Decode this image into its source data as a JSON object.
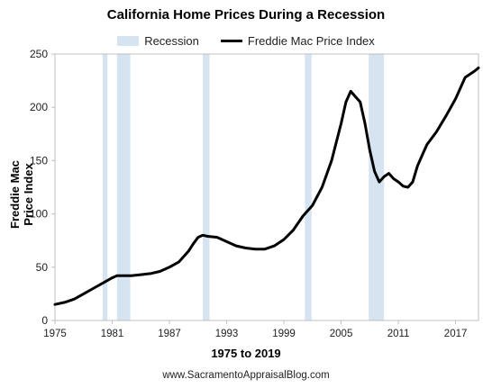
{
  "chart_data": {
    "type": "line",
    "title": "California Home Prices During a Recession",
    "xlabel": "1975 to 2019",
    "ylabel": "Freddie Mac Price Index",
    "xlim": [
      1975,
      2019.4
    ],
    "ylim": [
      0,
      250
    ],
    "xticks": [
      1975,
      1981,
      1987,
      1993,
      1999,
      2005,
      2011,
      2017
    ],
    "yticks": [
      0,
      50,
      100,
      150,
      200,
      250
    ],
    "grid": false,
    "legend_position": "top-center",
    "legend": [
      {
        "label": "Recession",
        "kind": "area",
        "color": "#d6e3f1"
      },
      {
        "label": "Freddie Mac Price Index",
        "kind": "line",
        "color": "#000000"
      }
    ],
    "recessions": [
      {
        "start": 1980.0,
        "end": 1980.5
      },
      {
        "start": 1981.5,
        "end": 1982.9
      },
      {
        "start": 1990.5,
        "end": 1991.2
      },
      {
        "start": 2001.2,
        "end": 2001.9
      },
      {
        "start": 2007.9,
        "end": 2009.5
      }
    ],
    "series": [
      {
        "name": "Freddie Mac Price Index",
        "color": "#000000",
        "x": [
          1975,
          1976,
          1977,
          1978,
          1979,
          1980,
          1981,
          1981.5,
          1982,
          1983,
          1984,
          1985,
          1986,
          1987,
          1988,
          1989,
          1989.5,
          1990,
          1990.5,
          1991,
          1992,
          1993,
          1994,
          1995,
          1996,
          1997,
          1998,
          1999,
          2000,
          2001,
          2002,
          2003,
          2004,
          2005,
          2005.5,
          2006,
          2006.5,
          2007,
          2007.5,
          2008,
          2008.5,
          2009,
          2009.5,
          2010,
          2010.5,
          2011,
          2011.5,
          2012,
          2012.5,
          2013,
          2013.5,
          2014,
          2015,
          2016,
          2017,
          2018,
          2019,
          2019.4
        ],
        "y": [
          15,
          17,
          20,
          25,
          30,
          35,
          40,
          42,
          42,
          42,
          43,
          44,
          46,
          50,
          55,
          65,
          72,
          78,
          80,
          79,
          78,
          74,
          70,
          68,
          67,
          67,
          70,
          76,
          85,
          98,
          108,
          125,
          150,
          185,
          205,
          215,
          210,
          205,
          185,
          160,
          140,
          130,
          135,
          138,
          133,
          130,
          126,
          125,
          130,
          145,
          155,
          165,
          177,
          192,
          208,
          228,
          234,
          237
        ]
      }
    ]
  },
  "credit": "www.SacramentoAppraisalBlog.com"
}
